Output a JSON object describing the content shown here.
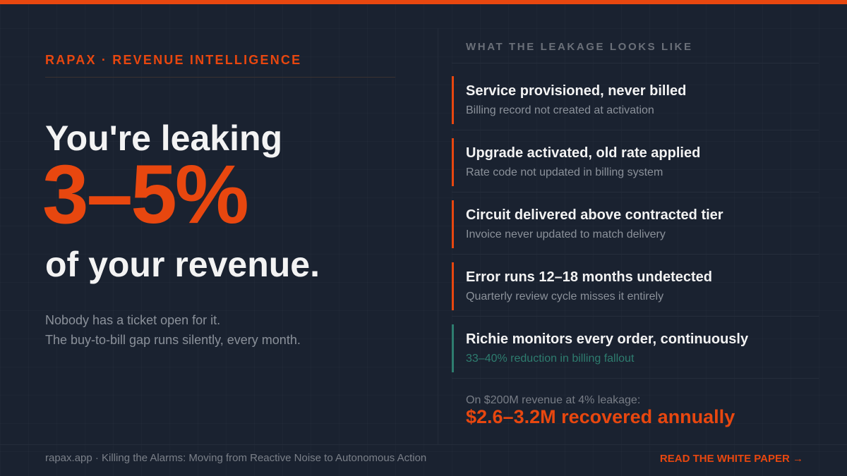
{
  "colors": {
    "accent": "#e8470f",
    "positive": "#2e7d6f",
    "background": "#1a2230"
  },
  "left": {
    "eyebrow": "RAPAX · REVENUE INTELLIGENCE",
    "headline_1": "You're leaking",
    "big_stat": "3–5%",
    "headline_2": "of your revenue.",
    "body_1": "Nobody has a ticket open for it.",
    "body_2": "The buy-to-bill gap runs silently, every month."
  },
  "right": {
    "heading": "WHAT THE LEAKAGE LOOKS LIKE",
    "items": [
      {
        "title": "Service provisioned, never billed",
        "subtitle": "Billing record not created at activation"
      },
      {
        "title": "Upgrade activated, old rate applied",
        "subtitle": "Rate code not updated in billing system"
      },
      {
        "title": "Circuit delivered above contracted tier",
        "subtitle": "Invoice never updated to match delivery"
      },
      {
        "title": "Error runs 12–18 months undetected",
        "subtitle": "Quarterly review cycle misses it entirely"
      },
      {
        "title": "Richie monitors every order, continuously",
        "subtitle": "33–40% reduction in billing fallout"
      }
    ],
    "calc_label": "On $200M revenue at 4% leakage:",
    "calc_value": "$2.6–3.2M recovered annually"
  },
  "footer": {
    "text": "rapax.app · Killing the Alarms: Moving from Reactive Noise to Autonomous Action",
    "cta": "READ THE WHITE PAPER →"
  }
}
